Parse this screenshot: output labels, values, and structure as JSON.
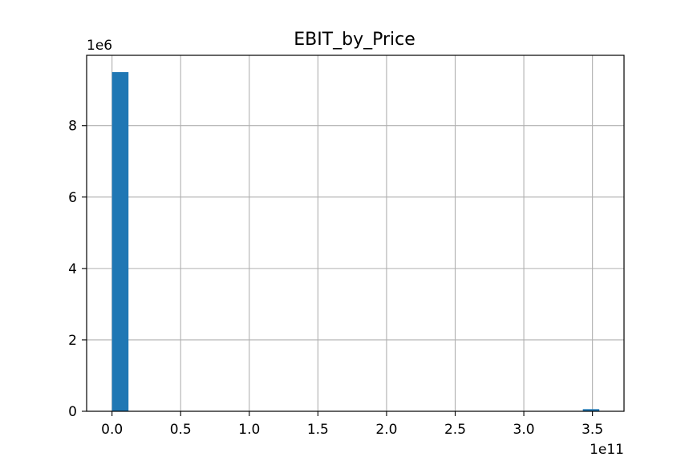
{
  "chart_data": {
    "type": "bar",
    "title": "EBIT_by_Price",
    "xlabel": "",
    "ylabel": "",
    "x_offset_label": "1e11",
    "y_offset_label": "1e6",
    "xlim": [
      -0.185,
      3.73
    ],
    "ylim": [
      0,
      9.97
    ],
    "x_ticks": [
      0.0,
      0.5,
      1.0,
      1.5,
      2.0,
      2.5,
      3.0,
      3.5
    ],
    "x_tick_labels": [
      "0.0",
      "0.5",
      "1.0",
      "1.5",
      "2.0",
      "2.5",
      "3.0",
      "3.5"
    ],
    "y_ticks": [
      0,
      2,
      4,
      6,
      8
    ],
    "y_tick_labels": [
      "0",
      "2",
      "4",
      "6",
      "8"
    ],
    "bins": [
      {
        "x0": 0.0,
        "x1": 0.12,
        "value": 9.5
      },
      {
        "x0": 3.43,
        "x1": 3.55,
        "value": 0.06
      }
    ],
    "bar_color": "#1f77b4",
    "grid": true,
    "legend": "none"
  }
}
